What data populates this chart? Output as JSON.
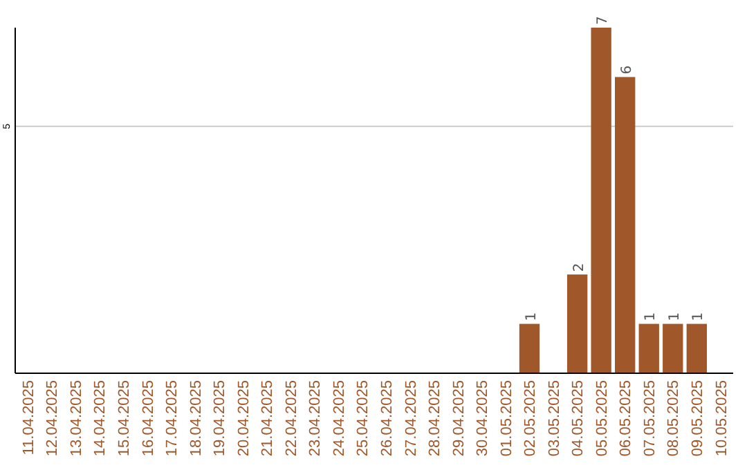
{
  "chart_data": {
    "type": "bar",
    "categories": [
      "11.04.2025",
      "12.04.2025",
      "13.04.2025",
      "14.04.2025",
      "15.04.2025",
      "16.04.2025",
      "17.04.2025",
      "18.04.2025",
      "19.04.2025",
      "20.04.2025",
      "21.04.2025",
      "22.04.2025",
      "23.04.2025",
      "24.04.2025",
      "25.04.2025",
      "26.04.2025",
      "27.04.2025",
      "28.04.2025",
      "29.04.2025",
      "30.04.2025",
      "01.05.2025",
      "02.05.2025",
      "03.05.2025",
      "04.05.2025",
      "05.05.2025",
      "06.05.2025",
      "07.05.2025",
      "08.05.2025",
      "09.05.2025",
      "10.05.2025"
    ],
    "values": [
      null,
      null,
      null,
      null,
      null,
      null,
      null,
      null,
      null,
      null,
      null,
      null,
      null,
      null,
      null,
      null,
      null,
      null,
      null,
      null,
      null,
      1,
      null,
      2,
      7,
      6,
      1,
      1,
      1,
      null
    ],
    "value_labels": [
      null,
      null,
      null,
      null,
      null,
      null,
      null,
      null,
      null,
      null,
      null,
      null,
      null,
      null,
      null,
      null,
      null,
      null,
      null,
      null,
      null,
      "1",
      null,
      "2",
      "7",
      "6",
      "1",
      "1",
      "1",
      null
    ],
    "color": "#a0572a",
    "ylim": [
      0,
      7
    ],
    "yticks": [
      5
    ],
    "grid": "y"
  }
}
